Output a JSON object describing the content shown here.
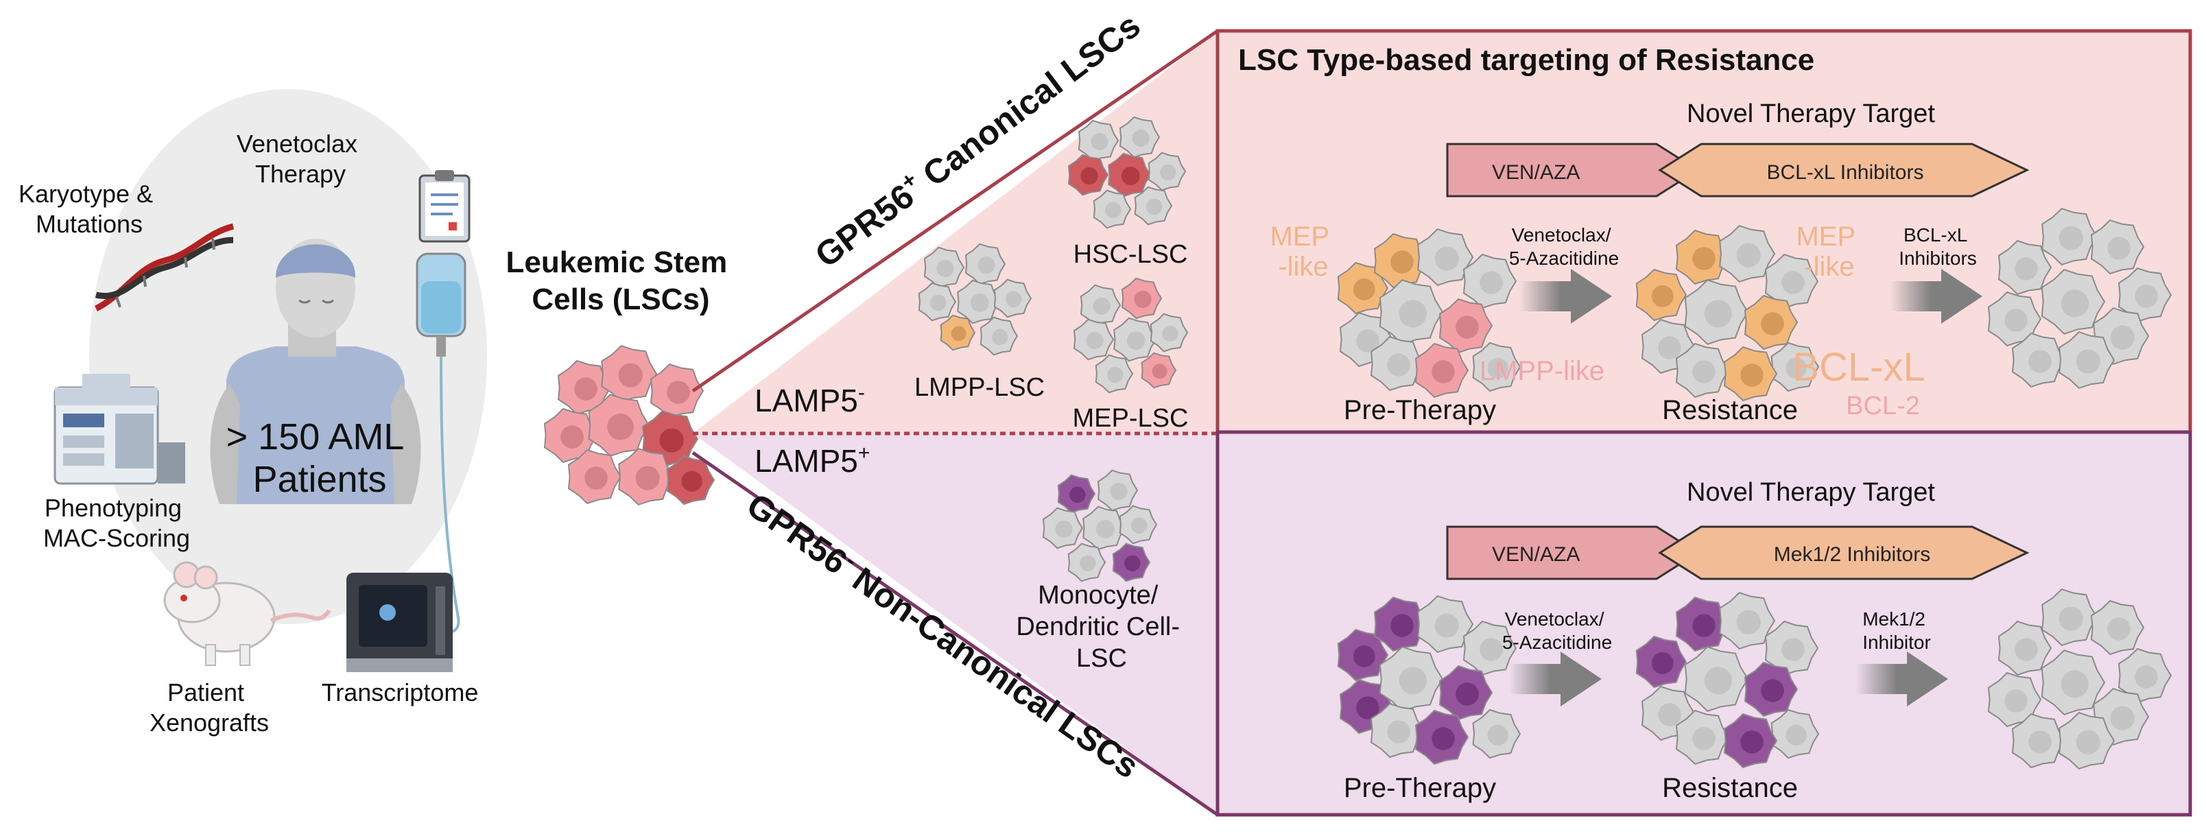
{
  "left_panel": {
    "karyotype": [
      "Karyotype &",
      "Mutations"
    ],
    "venetoclax": [
      "Venetoclax",
      "Therapy"
    ],
    "patients": [
      "> 150 AML",
      "Patients"
    ],
    "phenotyping": [
      "Phenotyping",
      "MAC-Scoring"
    ],
    "xenografts": [
      "Patient",
      "Xenografts"
    ],
    "transcriptome": "Transcriptome"
  },
  "lsc_center": {
    "title": [
      "Leukemic Stem",
      "Cells (LSCs)"
    ],
    "lamp_neg": {
      "base": "LAMP5",
      "sup": "-"
    },
    "lamp_pos": {
      "base": "LAMP5",
      "sup": "+"
    }
  },
  "wedge": {
    "upper_label": {
      "gpr": "GPR56",
      "sup": "+",
      "rest": " Canonical LSCs"
    },
    "lower_label": {
      "gpr": "GPR56",
      "sup": "-",
      "rest": " Non-Canonical LSCs"
    },
    "hsc": "HSC-LSC",
    "lmpp": "LMPP-LSC",
    "mep": "MEP-LSC",
    "mono": [
      "Monocyte/",
      "Dendritic Cell-",
      "LSC"
    ]
  },
  "top_panel": {
    "title": "LSC Type-based targeting of Resistance",
    "novel": "Novel Therapy Target",
    "ven": "VEN/AZA",
    "target": "BCL-xL Inhibitors",
    "mep1": [
      "MEP",
      "-like"
    ],
    "arrow1": [
      "Venetoclax/",
      "5-Azacitidine"
    ],
    "mep2": [
      "MEP",
      "-like"
    ],
    "arrow2": [
      "BCL-xL",
      "Inhibitors"
    ],
    "lmpp_like": "LMPP-like",
    "bclxl": "BCL-xL",
    "bcl2": "BCL-2",
    "pre": "Pre-Therapy",
    "res": "Resistance"
  },
  "bottom_panel": {
    "novel": "Novel Therapy Target",
    "ven": "VEN/AZA",
    "target": "Mek1/2 Inhibitors",
    "arrow1": [
      "Venetoclax/",
      "5-Azacitidine"
    ],
    "arrow2": [
      "Mek1/2",
      "Inhibitor"
    ],
    "pre": "Pre-Therapy",
    "res": "Resistance"
  },
  "colors": {
    "top_bg": "#f9dddd",
    "bottom_bg": "#efdcec",
    "top_border": "#a8404d",
    "bottom_border": "#7a3766",
    "ven_fill": "#e8a3a8",
    "target_fill": "#f2bc96",
    "gray_cell": "#d6d6d6",
    "orange_cell": "#f3b878",
    "pink_cell": "#f2a0a6",
    "purple_cell": "#93549b",
    "red_cell": "#cf5a60",
    "faded_label": "#f1b48a",
    "faded_pink": "#f0a6aa",
    "arrow_gray": "#7f7f7f"
  },
  "icons": [
    "dna-icon",
    "clipboard-icon",
    "iv-bag-icon",
    "patient-icon",
    "analyzer-icon",
    "mouse-icon",
    "sequencer-icon"
  ]
}
